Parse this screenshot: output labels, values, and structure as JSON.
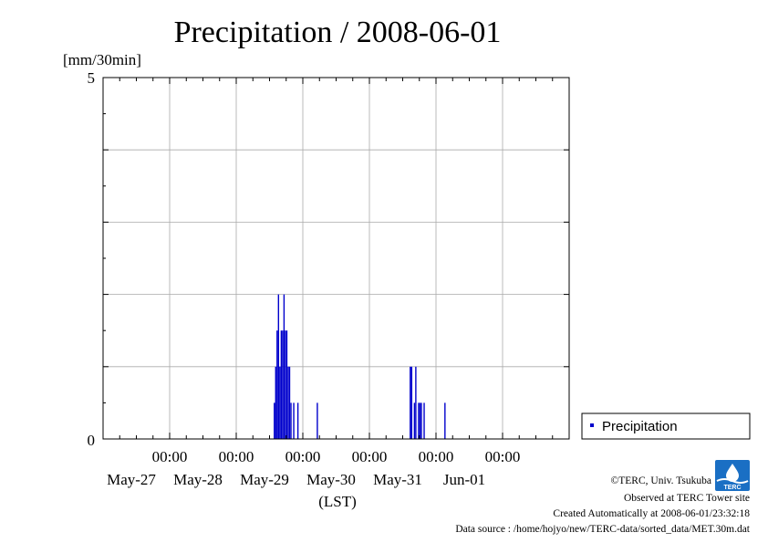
{
  "chart_data": {
    "type": "bar",
    "title": "Precipitation / 2008-06-01",
    "ylabel": "[mm/30min]",
    "xlabel": "(LST)",
    "ylim": [
      0,
      5
    ],
    "y_ticks": [
      "0",
      "5"
    ],
    "x_ticks": [
      {
        "time": "00:00",
        "date": "May-27"
      },
      {
        "time": "00:00",
        "date": "May-28"
      },
      {
        "time": "00:00",
        "date": "May-29"
      },
      {
        "time": "00:00",
        "date": "May-30"
      },
      {
        "time": "00:00",
        "date": "May-31"
      },
      {
        "time": "00:00",
        "date": "Jun-01"
      }
    ],
    "grid": true,
    "legend_position": "right",
    "color": "#0000cc",
    "series": [
      {
        "name": "Precipitation",
        "values": [
          {
            "t": "2008-05-28 13:30",
            "v": 0.5
          },
          {
            "t": "2008-05-28 14:00",
            "v": 1.0
          },
          {
            "t": "2008-05-28 14:30",
            "v": 1.5
          },
          {
            "t": "2008-05-28 15:00",
            "v": 2.0
          },
          {
            "t": "2008-05-28 15:30",
            "v": 1.0
          },
          {
            "t": "2008-05-28 16:00",
            "v": 1.5
          },
          {
            "t": "2008-05-28 16:30",
            "v": 1.5
          },
          {
            "t": "2008-05-28 17:00",
            "v": 2.0
          },
          {
            "t": "2008-05-28 17:30",
            "v": 1.5
          },
          {
            "t": "2008-05-28 18:00",
            "v": 1.5
          },
          {
            "t": "2008-05-28 18:30",
            "v": 1.0
          },
          {
            "t": "2008-05-28 19:00",
            "v": 1.0
          },
          {
            "t": "2008-05-28 19:30",
            "v": 0.5
          },
          {
            "t": "2008-05-28 20:30",
            "v": 0.5
          },
          {
            "t": "2008-05-28 22:00",
            "v": 0.5
          },
          {
            "t": "2008-05-29 05:00",
            "v": 0.5
          },
          {
            "t": "2008-05-30 14:30",
            "v": 1.0
          },
          {
            "t": "2008-05-30 15:00",
            "v": 1.0
          },
          {
            "t": "2008-05-30 16:00",
            "v": 0.5
          },
          {
            "t": "2008-05-30 16:30",
            "v": 1.0
          },
          {
            "t": "2008-05-30 17:30",
            "v": 0.5
          },
          {
            "t": "2008-05-30 18:00",
            "v": 0.5
          },
          {
            "t": "2008-05-30 18:30",
            "v": 0.5
          },
          {
            "t": "2008-05-30 19:30",
            "v": 0.5
          },
          {
            "t": "2008-05-31 03:00",
            "v": 0.5
          }
        ]
      }
    ]
  },
  "footer": {
    "copyright": "©TERC, Univ. Tsukuba",
    "observed": "Observed at TERC Tower site",
    "created": "Created Automatically at 2008-06-01/23:32:18",
    "source": "Data source : /home/hojyo/new/TERC-data/sorted_data/MET.30m.dat"
  },
  "logo": {
    "text": "TERC"
  }
}
